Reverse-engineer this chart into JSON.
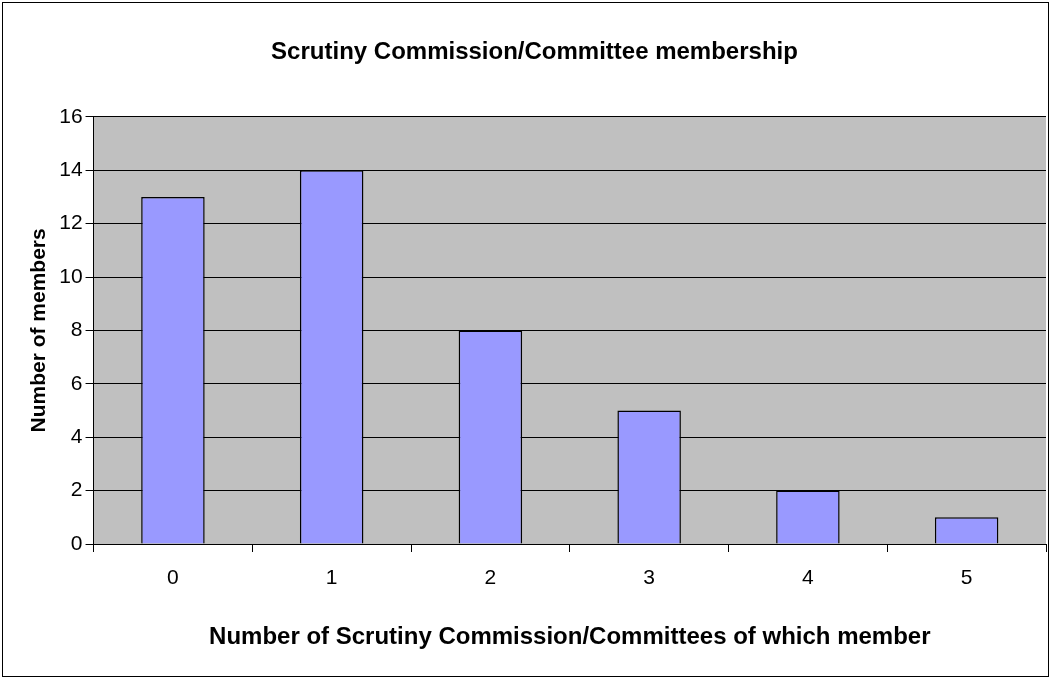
{
  "chart_data": {
    "type": "bar",
    "title": "Scrutiny Commission/Committee membership",
    "xlabel": "Number of Scrutiny Commission/Committees of which member",
    "ylabel": "Number of members",
    "categories": [
      "0",
      "1",
      "2",
      "3",
      "4",
      "5"
    ],
    "values": [
      13,
      14,
      8,
      5,
      2,
      1
    ],
    "color": "#9999ff",
    "ylim": [
      0,
      16
    ],
    "yticks": [
      0,
      2,
      4,
      6,
      8,
      10,
      12,
      14,
      16
    ],
    "grid": "y",
    "legend": false
  }
}
